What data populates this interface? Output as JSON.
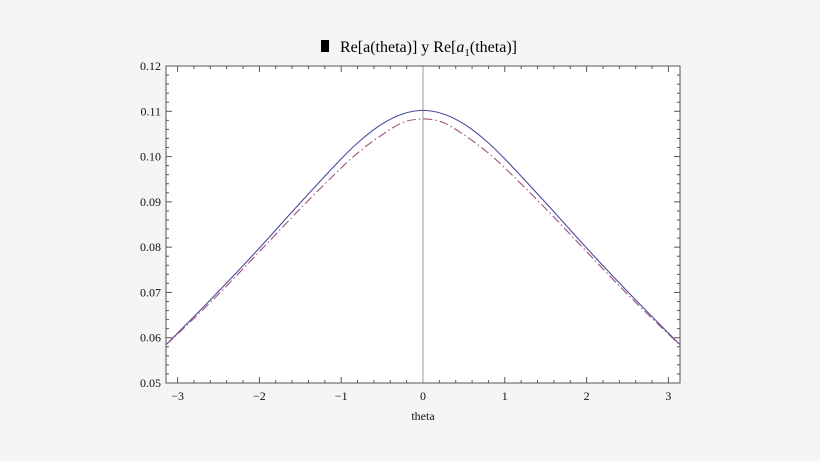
{
  "chart_data": {
    "type": "line",
    "title": {
      "prefix": "Re[a(theta)] y Re[",
      "italic": "a",
      "subscript": "1",
      "suffix": "(theta)]"
    },
    "xlabel": "theta",
    "ylabel": "",
    "xlim": [
      -3.14159,
      3.14159
    ],
    "ylim": [
      0.05,
      0.12
    ],
    "x_ticks": [
      -3,
      -2,
      -1,
      0,
      1,
      2,
      3
    ],
    "x_tick_labels": [
      "−3",
      "−2",
      "−1",
      "0",
      "1",
      "2",
      "3"
    ],
    "y_ticks": [
      0.05,
      0.06,
      0.07,
      0.08,
      0.09,
      0.1,
      0.11,
      0.12
    ],
    "y_tick_labels": [
      "0.05",
      "0.06",
      "0.07",
      "0.08",
      "0.09",
      "0.10",
      "0.11",
      "0.12"
    ],
    "grid": false,
    "frame": true,
    "series": [
      {
        "color": "#4b4b9c",
        "dash": "solid",
        "x": [
          -3.14,
          -3,
          -2.5,
          -2,
          -1.5,
          -1,
          -0.75,
          -0.5,
          -0.25,
          0,
          0.25,
          0.5,
          0.75,
          1,
          1.5,
          2,
          2.5,
          3,
          3.14
        ],
        "y": [
          0.0585,
          0.061,
          0.0702,
          0.0798,
          0.0898,
          0.0995,
          0.1038,
          0.1072,
          0.1094,
          0.1102,
          0.1094,
          0.1072,
          0.1038,
          0.0995,
          0.0898,
          0.0798,
          0.0702,
          0.061,
          0.0585
        ]
      },
      {
        "color": "#a0507a",
        "dash": "dash-dot",
        "x": [
          -3.14,
          -3,
          -2.5,
          -2,
          -1.5,
          -1,
          -0.75,
          -0.5,
          -0.25,
          0,
          0.25,
          0.5,
          0.75,
          1,
          1.5,
          2,
          2.5,
          3,
          3.14
        ],
        "y": [
          0.0585,
          0.0608,
          0.0696,
          0.079,
          0.0885,
          0.0975,
          0.1015,
          0.1048,
          0.1075,
          0.1083,
          0.1075,
          0.1048,
          0.1015,
          0.0975,
          0.0885,
          0.079,
          0.0696,
          0.0608,
          0.0585
        ]
      }
    ],
    "colors": {
      "background": "#f5f5f5",
      "plot_background": "#ffffff",
      "frame": "#555555",
      "zero_line": "#999999",
      "legend_swatch": "#000000"
    }
  }
}
